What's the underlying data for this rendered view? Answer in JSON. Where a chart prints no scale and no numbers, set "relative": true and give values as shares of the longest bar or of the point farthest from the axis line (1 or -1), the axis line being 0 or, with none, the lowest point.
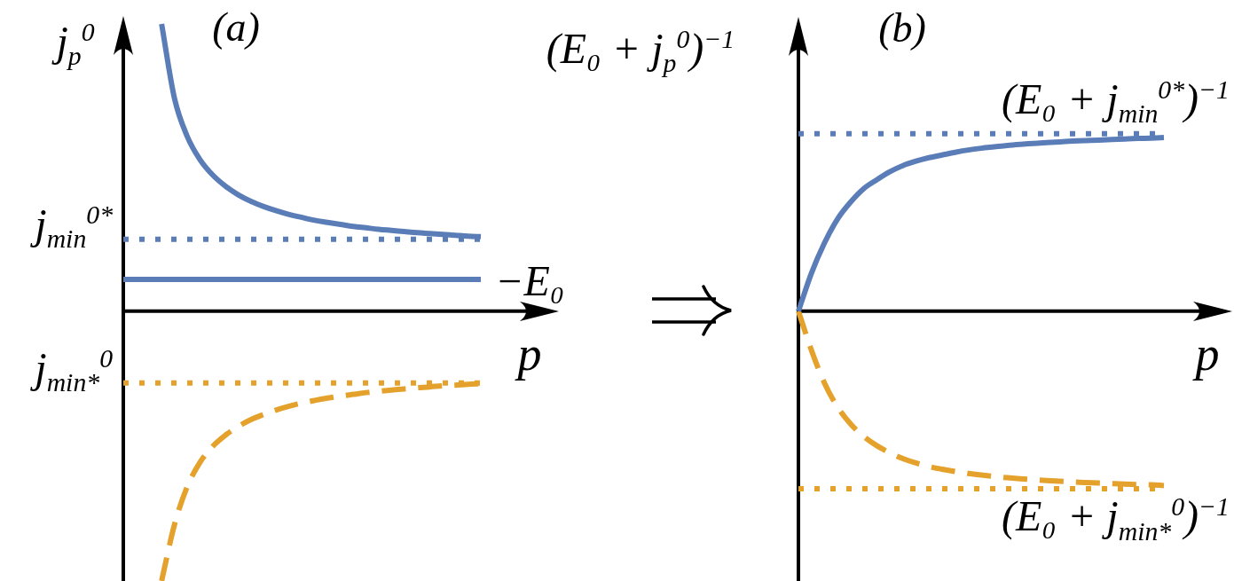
{
  "chart_data": [
    {
      "type": "line",
      "title": "(a)",
      "xlabel": "p",
      "ylabel": "j$_{p}$$^{0}$",
      "relative": true,
      "categories": [
        null,
        null,
        null,
        null,
        null,
        null,
        null,
        null,
        null,
        null,
        null,
        null,
        null,
        null,
        null,
        null,
        null,
        null,
        null,
        null,
        null,
        null,
        null,
        null,
        null,
        null,
        null,
        null,
        null
      ],
      "series": [
        {
          "color": "#5a7db8",
          "line_style": "solid",
          "values": [
            null,
            null,
            null,
            1,
            0.742,
            0.609,
            0.528,
            0.474,
            0.435,
            0.405,
            0.382,
            0.364,
            0.349,
            0.336,
            0.326,
            0.316,
            0.309,
            0.302,
            0.295,
            0.29,
            0.285,
            0.281,
            0.277,
            0.273,
            0.27,
            0.267,
            0.264,
            0.261,
            0.259
          ]
        },
        {
          "name": "−E₀",
          "color": "#5a7db8",
          "line_style": "solid",
          "values": [
            0.11,
            0.11,
            0.11,
            0.11,
            0.11,
            0.11,
            0.11,
            0.11,
            0.11,
            0.11,
            0.11,
            0.11,
            0.11,
            0.11,
            0.11,
            0.11,
            0.11,
            0.11,
            0.11,
            0.11,
            0.11,
            0.11,
            0.11,
            0.11,
            0.11,
            0.11,
            0.11,
            0.11,
            0.11
          ]
        },
        {
          "name": "j$_{min}$$^{0*}$",
          "color": "#5a7db8",
          "line_style": "dotted",
          "values": [
            0.25,
            0.25,
            0.25,
            0.25,
            0.25,
            0.25,
            0.25,
            0.25,
            0.25,
            0.25,
            0.25,
            0.25,
            0.25,
            0.25,
            0.25,
            0.25,
            0.25,
            0.25,
            0.25,
            0.25,
            0.25,
            0.25,
            0.25,
            0.25,
            0.25,
            0.25,
            0.25,
            0.25,
            0.25
          ]
        },
        {
          "name": "j$_{min*}$$^{0}$",
          "color": "#e4a12b",
          "line_style": "dotted",
          "values": [
            -0.25,
            -0.25,
            -0.25,
            -0.25,
            -0.25,
            -0.25,
            -0.25,
            -0.25,
            -0.25,
            -0.25,
            -0.25,
            -0.25,
            -0.25,
            -0.25,
            -0.25,
            -0.25,
            -0.25,
            -0.25,
            -0.25,
            -0.25,
            -0.25,
            -0.25,
            -0.25,
            -0.25,
            -0.25,
            -0.25,
            -0.25,
            -0.25,
            -0.25
          ]
        },
        {
          "color": "#e4a12b",
          "line_style": "dashed",
          "values": [
            null,
            null,
            null,
            -0.94,
            -0.745,
            -0.612,
            -0.527,
            -0.471,
            -0.432,
            -0.402,
            -0.378,
            -0.36,
            -0.344,
            -0.331,
            -0.32,
            -0.311,
            -0.303,
            -0.296,
            -0.29,
            -0.284,
            -0.279,
            -0.275,
            -0.271,
            -0.267,
            -0.264,
            -0.26,
            -0.258,
            -0.255,
            -0.253
          ]
        }
      ]
    },
    {
      "type": "line",
      "title": "(b)",
      "xlabel": "p",
      "ylabel": "(E₀ + j$_{p}$$^{0}$)$^{−1}$",
      "relative": true,
      "categories": [
        null,
        null,
        null,
        null,
        null,
        null,
        null,
        null,
        null,
        null,
        null,
        null,
        null,
        null,
        null,
        null,
        null,
        null,
        null,
        null,
        null,
        null,
        null,
        null,
        null,
        null,
        null,
        null,
        null
      ],
      "series": [
        {
          "color": "#5a7db8",
          "line_style": "solid",
          "values": [
            0,
            0.215,
            0.385,
            0.52,
            0.615,
            0.69,
            0.74,
            0.785,
            0.82,
            0.845,
            0.865,
            0.88,
            0.895,
            0.908,
            0.918,
            0.926,
            0.934,
            0.94,
            0.945,
            0.95,
            0.954,
            0.958,
            0.961,
            0.964,
            0.967,
            0.97,
            0.973,
            0.975,
            0.978
          ]
        },
        {
          "name": "(E₀ + j$_{min}$$^{0*}$)$^{−1}$",
          "color": "#5a7db8",
          "line_style": "dotted",
          "values": [
            1,
            1,
            1,
            1,
            1,
            1,
            1,
            1,
            1,
            1,
            1,
            1,
            1,
            1,
            1,
            1,
            1,
            1,
            1,
            1,
            1,
            1,
            1,
            1,
            1,
            1,
            1,
            1,
            1
          ]
        },
        {
          "name": "(E₀ + j$_{min*}$$^{0}$)$^{−1}$",
          "color": "#e4a12b",
          "line_style": "dotted",
          "values": [
            -1,
            -1,
            -1,
            -1,
            -1,
            -1,
            -1,
            -1,
            -1,
            -1,
            -1,
            -1,
            -1,
            -1,
            -1,
            -1,
            -1,
            -1,
            -1,
            -1,
            -1,
            -1,
            -1,
            -1,
            -1,
            -1,
            -1,
            -1,
            -1
          ]
        },
        {
          "color": "#e4a12b",
          "line_style": "dashed",
          "values": [
            0,
            -0.22,
            -0.405,
            -0.54,
            -0.635,
            -0.705,
            -0.757,
            -0.797,
            -0.83,
            -0.855,
            -0.875,
            -0.89,
            -0.903,
            -0.914,
            -0.923,
            -0.931,
            -0.938,
            -0.944,
            -0.949,
            -0.954,
            -0.958,
            -0.962,
            -0.965,
            -0.968,
            -0.971,
            -0.974,
            -0.976,
            -0.978,
            -0.982
          ]
        }
      ]
    }
  ]
}
